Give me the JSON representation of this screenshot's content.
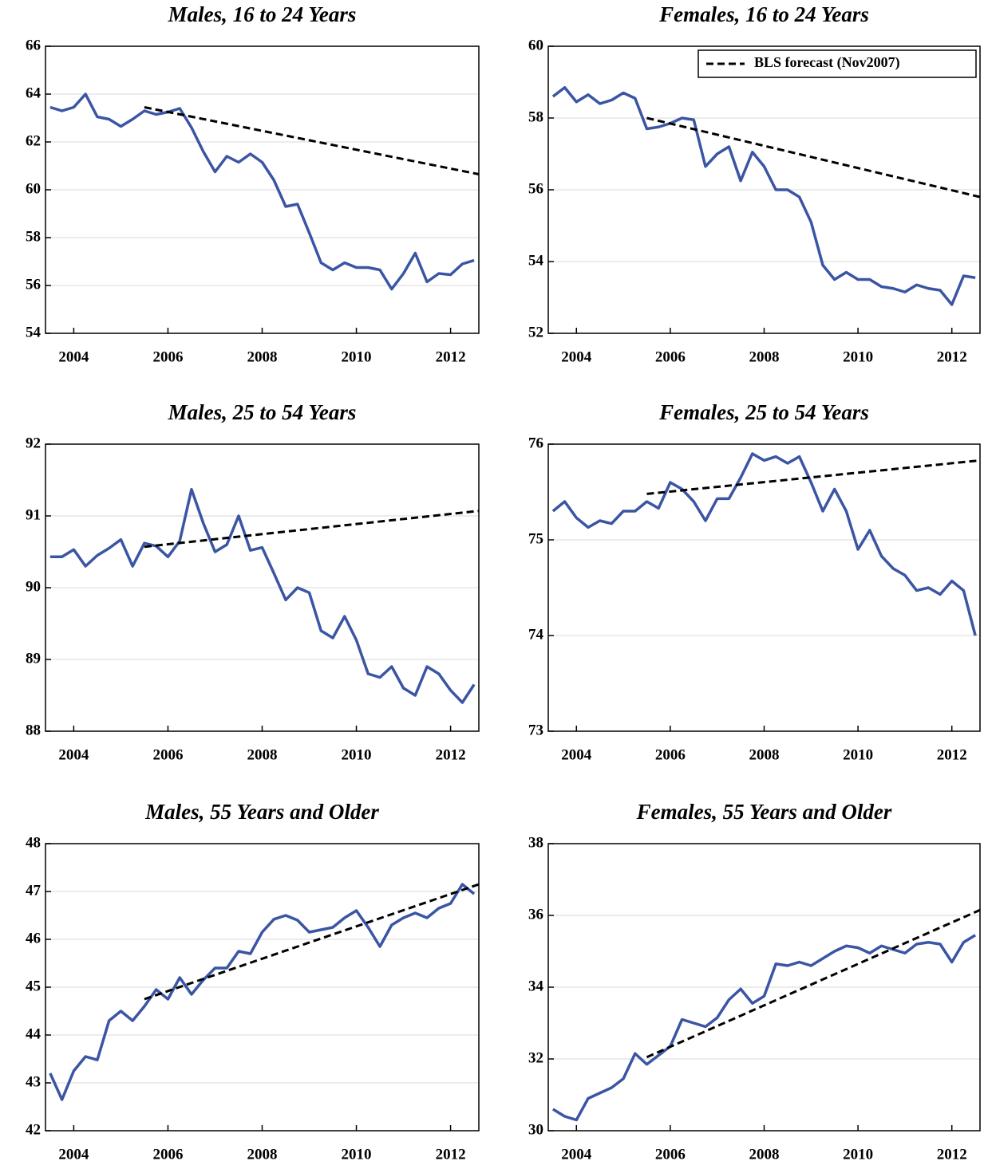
{
  "chart_data": [
    {
      "type": "line",
      "title": "Males, 16 to 24 Years",
      "x": [
        2004,
        2004.25,
        2004.5,
        2004.75,
        2005,
        2005.25,
        2005.5,
        2005.75,
        2006,
        2006.25,
        2006.5,
        2006.75,
        2007,
        2007.25,
        2007.5,
        2007.75,
        2008,
        2008.25,
        2008.5,
        2008.75,
        2009,
        2009.25,
        2009.5,
        2009.75,
        2010,
        2010.25,
        2010.5,
        2010.75,
        2011,
        2011.25,
        2011.5,
        2011.75,
        2012,
        2012.25,
        2012.5,
        2012.75,
        2013
      ],
      "series": [
        {
          "color": "#3a55a4",
          "values": [
            63.45,
            63.3,
            63.45,
            64.0,
            63.05,
            62.95,
            62.65,
            62.95,
            63.3,
            63.15,
            63.25,
            63.4,
            62.6,
            61.6,
            60.75,
            61.4,
            61.15,
            61.5,
            61.15,
            60.4,
            59.3,
            59.4,
            58.2,
            56.95,
            56.65,
            56.95,
            56.75,
            56.75,
            56.65,
            55.85,
            56.5,
            57.35,
            56.15,
            56.5,
            56.45,
            56.9,
            57.05
          ]
        },
        {
          "color": "#000000",
          "dashed": true,
          "x": [
            2006,
            2013.1
          ],
          "values": [
            63.45,
            60.65
          ]
        }
      ],
      "xlim": [
        2003.9,
        2013.1
      ],
      "xticks": [
        {
          "value": 2004.5,
          "label": "2004"
        },
        {
          "value": 2006.5,
          "label": "2006"
        },
        {
          "value": 2008.5,
          "label": "2008"
        },
        {
          "value": 2010.5,
          "label": "2010"
        },
        {
          "value": 2012.5,
          "label": "2012"
        }
      ],
      "ylim": [
        54,
        66
      ],
      "yticks": [
        54,
        56,
        58,
        60,
        62,
        64,
        66
      ],
      "grid": true
    },
    {
      "type": "line",
      "title": "Females, 16 to 24 Years",
      "x": [
        2004,
        2004.25,
        2004.5,
        2004.75,
        2005,
        2005.25,
        2005.5,
        2005.75,
        2006,
        2006.25,
        2006.5,
        2006.75,
        2007,
        2007.25,
        2007.5,
        2007.75,
        2008,
        2008.25,
        2008.5,
        2008.75,
        2009,
        2009.25,
        2009.5,
        2009.75,
        2010,
        2010.25,
        2010.5,
        2010.75,
        2011,
        2011.25,
        2011.5,
        2011.75,
        2012,
        2012.25,
        2012.5,
        2012.75,
        2013
      ],
      "series": [
        {
          "color": "#3a55a4",
          "values": [
            58.6,
            58.85,
            58.45,
            58.65,
            58.4,
            58.5,
            58.7,
            58.55,
            57.7,
            57.75,
            57.85,
            58.0,
            57.95,
            56.65,
            57.0,
            57.2,
            56.25,
            57.05,
            56.65,
            56.0,
            56.0,
            55.8,
            55.1,
            53.9,
            53.5,
            53.7,
            53.5,
            53.5,
            53.3,
            53.25,
            53.15,
            53.35,
            53.25,
            53.2,
            52.8,
            53.6,
            53.55
          ]
        },
        {
          "name": "BLS forecast (Nov2007)",
          "color": "#000000",
          "dashed": true,
          "x": [
            2006,
            2013.1
          ],
          "values": [
            58.0,
            55.8
          ]
        }
      ],
      "legend": "upper right",
      "xlim": [
        2003.9,
        2013.1
      ],
      "xticks": [
        {
          "value": 2004.5,
          "label": "2004"
        },
        {
          "value": 2006.5,
          "label": "2006"
        },
        {
          "value": 2008.5,
          "label": "2008"
        },
        {
          "value": 2010.5,
          "label": "2010"
        },
        {
          "value": 2012.5,
          "label": "2012"
        }
      ],
      "ylim": [
        52,
        60
      ],
      "yticks": [
        52,
        54,
        56,
        58,
        60
      ],
      "grid": true
    },
    {
      "type": "line",
      "title": "Males, 25 to 54 Years",
      "x": [
        2004,
        2004.25,
        2004.5,
        2004.75,
        2005,
        2005.25,
        2005.5,
        2005.75,
        2006,
        2006.25,
        2006.5,
        2006.75,
        2007,
        2007.25,
        2007.5,
        2007.75,
        2008,
        2008.25,
        2008.5,
        2008.75,
        2009,
        2009.25,
        2009.5,
        2009.75,
        2010,
        2010.25,
        2010.5,
        2010.75,
        2011,
        2011.25,
        2011.5,
        2011.75,
        2012,
        2012.25,
        2012.5,
        2012.75,
        2013
      ],
      "series": [
        {
          "color": "#3a55a4",
          "values": [
            90.43,
            90.43,
            90.53,
            90.3,
            90.45,
            90.55,
            90.67,
            90.3,
            90.62,
            90.58,
            90.43,
            90.65,
            91.37,
            90.9,
            90.5,
            90.6,
            91.0,
            90.52,
            90.56,
            90.2,
            89.83,
            90.0,
            89.93,
            89.4,
            89.3,
            89.6,
            89.27,
            88.8,
            88.75,
            88.9,
            88.6,
            88.5,
            88.9,
            88.8,
            88.57,
            88.4,
            88.65
          ]
        },
        {
          "color": "#000000",
          "dashed": true,
          "x": [
            2006,
            2013.1
          ],
          "values": [
            90.57,
            91.07
          ]
        }
      ],
      "xlim": [
        2003.9,
        2013.1
      ],
      "xticks": [
        {
          "value": 2004.5,
          "label": "2004"
        },
        {
          "value": 2006.5,
          "label": "2006"
        },
        {
          "value": 2008.5,
          "label": "2008"
        },
        {
          "value": 2010.5,
          "label": "2010"
        },
        {
          "value": 2012.5,
          "label": "2012"
        }
      ],
      "ylim": [
        88,
        92
      ],
      "yticks": [
        88,
        89,
        90,
        91,
        92
      ],
      "grid": true
    },
    {
      "type": "line",
      "title": "Females, 25 to 54 Years",
      "x": [
        2004,
        2004.25,
        2004.5,
        2004.75,
        2005,
        2005.25,
        2005.5,
        2005.75,
        2006,
        2006.25,
        2006.5,
        2006.75,
        2007,
        2007.25,
        2007.5,
        2007.75,
        2008,
        2008.25,
        2008.5,
        2008.75,
        2009,
        2009.25,
        2009.5,
        2009.75,
        2010,
        2010.25,
        2010.5,
        2010.75,
        2011,
        2011.25,
        2011.5,
        2011.75,
        2012,
        2012.25,
        2012.5,
        2012.75,
        2013
      ],
      "series": [
        {
          "color": "#3a55a4",
          "values": [
            75.3,
            75.4,
            75.23,
            75.13,
            75.2,
            75.17,
            75.3,
            75.3,
            75.4,
            75.33,
            75.6,
            75.53,
            75.4,
            75.2,
            75.43,
            75.43,
            75.65,
            75.9,
            75.83,
            75.87,
            75.8,
            75.87,
            75.6,
            75.3,
            75.53,
            75.3,
            74.9,
            75.1,
            74.83,
            74.7,
            74.63,
            74.47,
            74.5,
            74.43,
            74.57,
            74.47,
            74.0
          ]
        },
        {
          "color": "#000000",
          "dashed": true,
          "x": [
            2006,
            2013.1
          ],
          "values": [
            75.48,
            75.83
          ]
        }
      ],
      "xlim": [
        2003.9,
        2013.1
      ],
      "xticks": [
        {
          "value": 2004.5,
          "label": "2004"
        },
        {
          "value": 2006.5,
          "label": "2006"
        },
        {
          "value": 2008.5,
          "label": "2008"
        },
        {
          "value": 2010.5,
          "label": "2010"
        },
        {
          "value": 2012.5,
          "label": "2012"
        }
      ],
      "ylim": [
        73,
        76
      ],
      "yticks": [
        73,
        74,
        75,
        76
      ],
      "grid": true
    },
    {
      "type": "line",
      "title": "Males, 55 Years and Older",
      "x": [
        2004,
        2004.25,
        2004.5,
        2004.75,
        2005,
        2005.25,
        2005.5,
        2005.75,
        2006,
        2006.25,
        2006.5,
        2006.75,
        2007,
        2007.25,
        2007.5,
        2007.75,
        2008,
        2008.25,
        2008.5,
        2008.75,
        2009,
        2009.25,
        2009.5,
        2009.75,
        2010,
        2010.25,
        2010.5,
        2010.75,
        2011,
        2011.25,
        2011.5,
        2011.75,
        2012,
        2012.25,
        2012.5,
        2012.75,
        2013
      ],
      "series": [
        {
          "color": "#3a55a4",
          "values": [
            43.2,
            42.65,
            43.25,
            43.55,
            43.48,
            44.3,
            44.5,
            44.3,
            44.6,
            44.95,
            44.75,
            45.2,
            44.85,
            45.15,
            45.4,
            45.4,
            45.75,
            45.7,
            46.15,
            46.42,
            46.5,
            46.4,
            46.15,
            46.2,
            46.25,
            46.45,
            46.6,
            46.25,
            45.85,
            46.3,
            46.45,
            46.55,
            46.45,
            46.65,
            46.75,
            47.15,
            46.95
          ]
        },
        {
          "color": "#000000",
          "dashed": true,
          "x": [
            2006,
            2013.1
          ],
          "values": [
            44.75,
            47.15
          ]
        }
      ],
      "xlim": [
        2003.9,
        2013.1
      ],
      "xticks": [
        {
          "value": 2004.5,
          "label": "2004"
        },
        {
          "value": 2006.5,
          "label": "2006"
        },
        {
          "value": 2008.5,
          "label": "2008"
        },
        {
          "value": 2010.5,
          "label": "2010"
        },
        {
          "value": 2012.5,
          "label": "2012"
        }
      ],
      "ylim": [
        42,
        48
      ],
      "yticks": [
        42,
        43,
        44,
        45,
        46,
        47,
        48
      ],
      "grid": true
    },
    {
      "type": "line",
      "title": "Females, 55 Years and Older",
      "x": [
        2004,
        2004.25,
        2004.5,
        2004.75,
        2005,
        2005.25,
        2005.5,
        2005.75,
        2006,
        2006.25,
        2006.5,
        2006.75,
        2007,
        2007.25,
        2007.5,
        2007.75,
        2008,
        2008.25,
        2008.5,
        2008.75,
        2009,
        2009.25,
        2009.5,
        2009.75,
        2010,
        2010.25,
        2010.5,
        2010.75,
        2011,
        2011.25,
        2011.5,
        2011.75,
        2012,
        2012.25,
        2012.5,
        2012.75,
        2013
      ],
      "series": [
        {
          "color": "#3a55a4",
          "values": [
            30.6,
            30.4,
            30.3,
            30.9,
            31.05,
            31.2,
            31.45,
            32.15,
            31.85,
            32.1,
            32.35,
            33.1,
            33.0,
            32.9,
            33.15,
            33.65,
            33.95,
            33.55,
            33.75,
            34.65,
            34.6,
            34.7,
            34.6,
            34.8,
            35.0,
            35.15,
            35.1,
            34.95,
            35.15,
            35.05,
            34.95,
            35.2,
            35.25,
            35.2,
            34.7,
            35.25,
            35.45
          ]
        },
        {
          "color": "#000000",
          "dashed": true,
          "x": [
            2006,
            2013.1
          ],
          "values": [
            32.05,
            36.15
          ]
        }
      ],
      "xlim": [
        2003.9,
        2013.1
      ],
      "xticks": [
        {
          "value": 2004.5,
          "label": "2004"
        },
        {
          "value": 2006.5,
          "label": "2006"
        },
        {
          "value": 2008.5,
          "label": "2008"
        },
        {
          "value": 2010.5,
          "label": "2010"
        },
        {
          "value": 2012.5,
          "label": "2012"
        }
      ],
      "ylim": [
        30,
        38
      ],
      "yticks": [
        30,
        32,
        34,
        36,
        38
      ],
      "grid": true
    }
  ]
}
